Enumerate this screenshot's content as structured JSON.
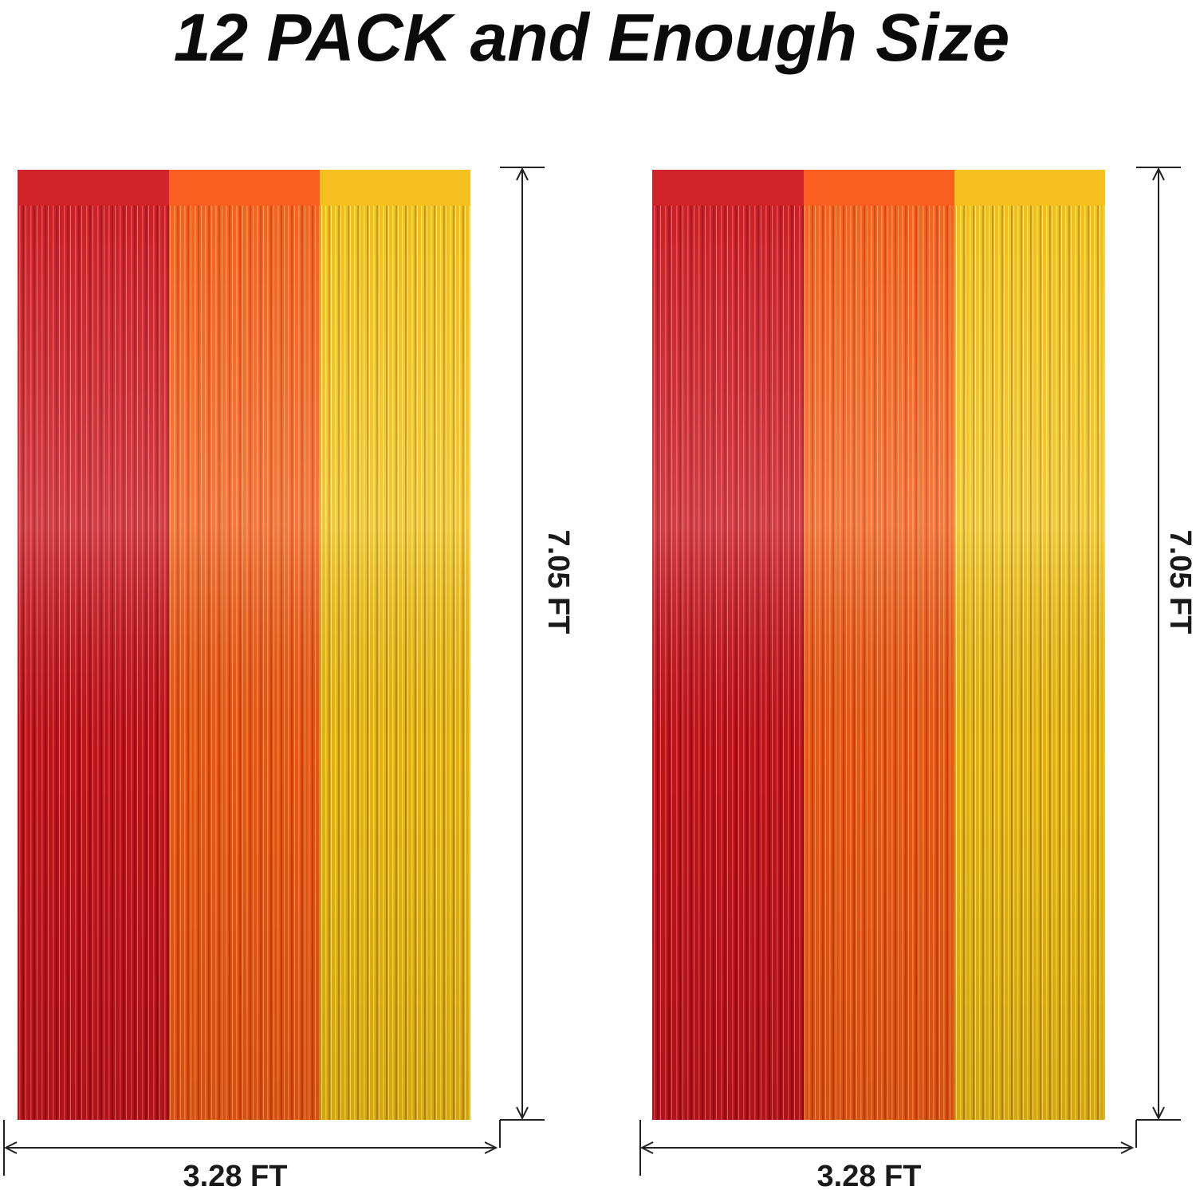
{
  "title": "12 PACK and Enough Size",
  "panels": [
    {
      "height_label": "7.05 FT",
      "width_label": "3.28 FT"
    },
    {
      "height_label": "7.05 FT",
      "width_label": "3.28 FT"
    }
  ]
}
